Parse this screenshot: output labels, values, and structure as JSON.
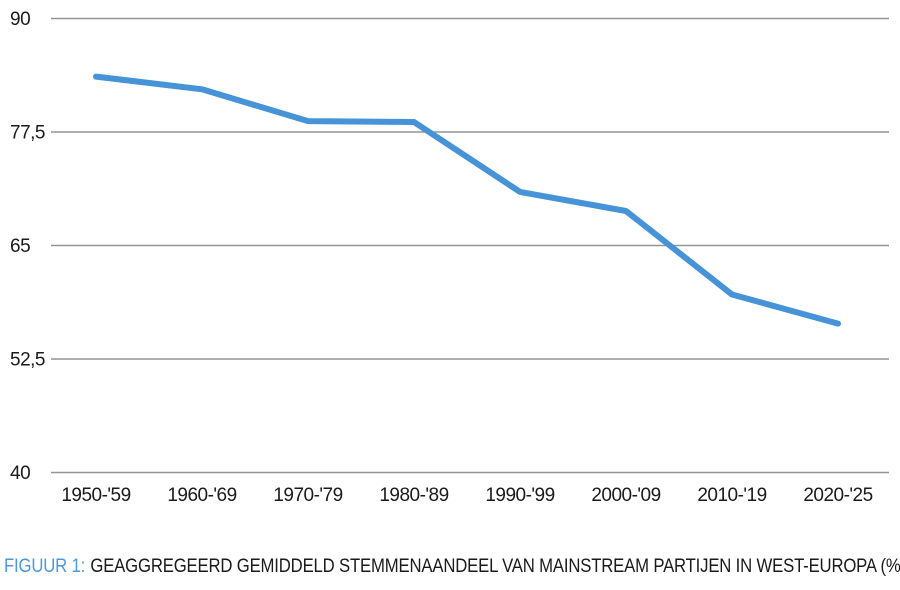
{
  "chart_data": {
    "type": "line",
    "title": "",
    "xlabel": "",
    "ylabel": "",
    "categories": [
      "1950-'59",
      "1960-'69",
      "1970-'79",
      "1980-'89",
      "1990-'99",
      "2000-'09",
      "2010-'19",
      "2020-'25"
    ],
    "series": [
      {
        "name": "Geaggregeerd gemiddeld stemmenaandeel mainstream partijen",
        "values": [
          83.6,
          82.2,
          78.7,
          78.6,
          70.9,
          68.8,
          59.6,
          56.4
        ]
      }
    ],
    "ylim": [
      40,
      90
    ],
    "yticks": [
      90,
      77.5,
      65,
      52.5,
      40
    ],
    "ytick_labels": [
      "90",
      "77,5",
      "65",
      "52,5",
      "40"
    ],
    "grid": "horizontal-only",
    "legend": "none",
    "line_color": "#4693d8",
    "gridline_color": "#949494",
    "text_color": "#1a1a1a"
  },
  "caption": {
    "prefix": "FIGUUR 1:",
    "text": "GEAGGREGEERD GEMIDDELD STEMMENAANDEEL VAN MAINSTREAM PARTIJEN IN WEST-EUROPA (%)",
    "prefix_color": "#4a99de"
  }
}
